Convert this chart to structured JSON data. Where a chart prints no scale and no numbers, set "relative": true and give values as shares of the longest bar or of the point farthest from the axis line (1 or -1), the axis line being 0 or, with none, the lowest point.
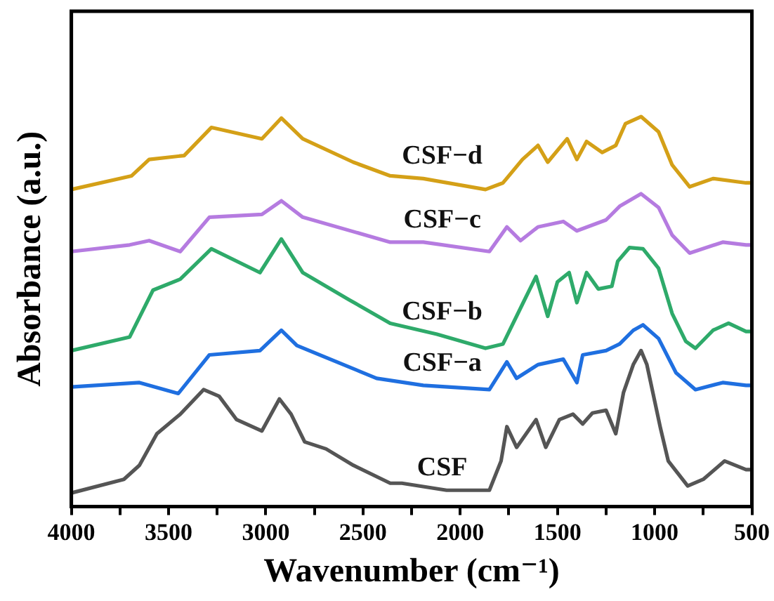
{
  "chart_data": {
    "type": "line",
    "relative": true,
    "xlabel": "Wavenumber (cm⁻¹)",
    "ylabel": "Absorbance (a.u.)",
    "xlim": [
      4000,
      500
    ],
    "xticks": [
      4000,
      {
        "value": 3750,
        "label": null
      },
      3500,
      {
        "value": 3250,
        "label": null
      },
      3000,
      {
        "value": 2750,
        "label": null
      },
      2500,
      {
        "value": 2250,
        "label": null
      },
      2000,
      {
        "value": 1750,
        "label": null
      },
      1500,
      {
        "value": 1250,
        "label": null
      },
      1000,
      {
        "value": 750,
        "label": null
      },
      500
    ],
    "grid": false,
    "legend": false,
    "marker": "none",
    "line_style": "solid",
    "series": [
      {
        "name": "CSF",
        "color": "#555555",
        "x": [
          4000,
          3730,
          3650,
          3560,
          3440,
          3320,
          3240,
          3150,
          3020,
          2930,
          2870,
          2800,
          2690,
          2550,
          2360,
          2300,
          2070,
          1850,
          1790,
          1760,
          1710,
          1610,
          1560,
          1490,
          1420,
          1370,
          1320,
          1250,
          1200,
          1160,
          1110,
          1070,
          1040,
          970,
          930,
          830,
          750,
          640,
          530,
          500
        ],
        "values": [
          0.035,
          0.07,
          0.106,
          0.187,
          0.237,
          0.3,
          0.283,
          0.223,
          0.194,
          0.276,
          0.237,
          0.166,
          0.148,
          0.106,
          0.06,
          0.06,
          0.042,
          0.042,
          0.117,
          0.205,
          0.152,
          0.223,
          0.152,
          0.223,
          0.237,
          0.212,
          0.24,
          0.247,
          0.187,
          0.293,
          0.364,
          0.4,
          0.364,
          0.201,
          0.117,
          0.053,
          0.07,
          0.117,
          0.095,
          0.095
        ]
      },
      {
        "name": "CSF−a",
        "color": "#1f6fe0",
        "x": [
          4000,
          3650,
          3450,
          3290,
          3030,
          2920,
          2840,
          2430,
          2190,
          1850,
          1760,
          1710,
          1600,
          1470,
          1400,
          1370,
          1250,
          1180,
          1110,
          1060,
          980,
          890,
          790,
          650,
          530,
          500
        ],
        "values": [
          0.307,
          0.318,
          0.29,
          0.389,
          0.4,
          0.452,
          0.413,
          0.329,
          0.311,
          0.3,
          0.371,
          0.329,
          0.364,
          0.378,
          0.318,
          0.389,
          0.4,
          0.417,
          0.452,
          0.466,
          0.431,
          0.343,
          0.3,
          0.318,
          0.311,
          0.311
        ]
      },
      {
        "name": "CSF−b",
        "color": "#2eaa6a",
        "x": [
          4000,
          3700,
          3580,
          3440,
          3280,
          3030,
          2920,
          2810,
          2570,
          2360,
          2120,
          1870,
          1780,
          1680,
          1610,
          1550,
          1500,
          1440,
          1400,
          1350,
          1290,
          1220,
          1190,
          1130,
          1060,
          980,
          910,
          840,
          790,
          700,
          620,
          530,
          500
        ],
        "values": [
          0.4,
          0.435,
          0.555,
          0.583,
          0.661,
          0.6,
          0.686,
          0.6,
          0.53,
          0.47,
          0.442,
          0.406,
          0.417,
          0.519,
          0.59,
          0.488,
          0.576,
          0.6,
          0.523,
          0.6,
          0.558,
          0.565,
          0.629,
          0.664,
          0.661,
          0.611,
          0.495,
          0.424,
          0.406,
          0.452,
          0.47,
          0.449,
          0.449
        ]
      },
      {
        "name": "CSF−c",
        "color": "#b57be0",
        "x": [
          4000,
          3700,
          3600,
          3440,
          3290,
          3020,
          2920,
          2810,
          2360,
          2190,
          1850,
          1760,
          1690,
          1600,
          1470,
          1400,
          1250,
          1180,
          1070,
          980,
          910,
          820,
          650,
          530,
          500
        ],
        "values": [
          0.654,
          0.671,
          0.682,
          0.654,
          0.742,
          0.749,
          0.784,
          0.742,
          0.678,
          0.678,
          0.654,
          0.717,
          0.682,
          0.717,
          0.731,
          0.707,
          0.735,
          0.77,
          0.802,
          0.767,
          0.696,
          0.65,
          0.678,
          0.671,
          0.671
        ]
      },
      {
        "name": "CSF−d",
        "color": "#d4a017",
        "x": [
          4000,
          3690,
          3600,
          3420,
          3280,
          3020,
          2920,
          2810,
          2550,
          2360,
          2190,
          1870,
          1780,
          1680,
          1600,
          1550,
          1450,
          1400,
          1350,
          1270,
          1200,
          1150,
          1070,
          980,
          910,
          820,
          700,
          530,
          500
        ],
        "values": [
          0.813,
          0.848,
          0.89,
          0.9,
          0.972,
          0.943,
          0.996,
          0.943,
          0.883,
          0.848,
          0.841,
          0.813,
          0.83,
          0.89,
          0.926,
          0.883,
          0.943,
          0.89,
          0.936,
          0.908,
          0.926,
          0.982,
          1.0,
          0.961,
          0.876,
          0.82,
          0.841,
          0.83,
          0.83
        ]
      }
    ]
  }
}
